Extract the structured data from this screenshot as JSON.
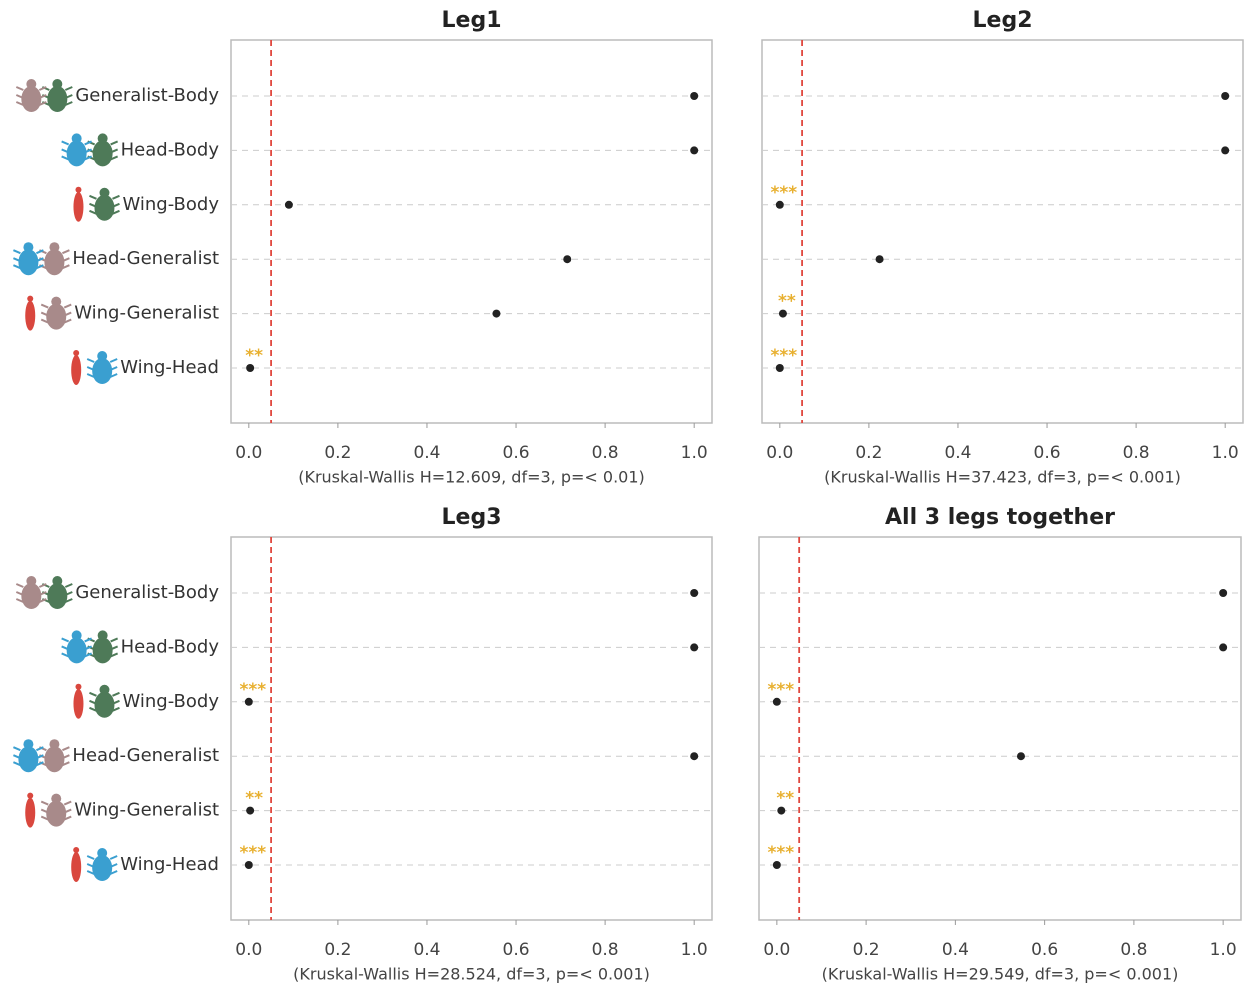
{
  "chart_data": [
    {
      "type": "dot",
      "title": "Leg1",
      "xlabel": "(Kruskal-Wallis H=12.609, df=3, p=< 0.01)",
      "categories": [
        "Generalist-Body",
        "Head-Body",
        "Wing-Body",
        "Head-Generalist",
        "Wing-Generalist",
        "Wing-Head"
      ],
      "values": [
        1.0,
        1.0,
        0.09,
        0.715,
        0.556,
        0.003
      ],
      "significance": [
        null,
        null,
        null,
        null,
        null,
        "**"
      ],
      "threshold": 0.05,
      "color": "#222222",
      "threshold_color": "#e0473e",
      "xlim": [
        -0.04,
        1.04
      ],
      "xticks": [
        {
          "value": 0,
          "label": "0.0"
        },
        0.2,
        0.4,
        0.6,
        0.8,
        {
          "value": 1,
          "label": "1.0"
        }
      ]
    },
    {
      "type": "dot",
      "title": "Leg2",
      "xlabel": "(Kruskal-Wallis H=37.423, df=3, p=< 0.001)",
      "values": [
        1.0,
        1.0,
        0.0,
        0.224,
        0.007,
        0.0
      ],
      "significance": [
        null,
        null,
        "***",
        null,
        "**",
        "***"
      ],
      "threshold": 0.05,
      "color": "#222222",
      "threshold_color": "#e0473e",
      "xlim": [
        -0.04,
        1.04
      ],
      "xticks": [
        {
          "value": 0,
          "label": "0.0"
        },
        0.2,
        0.4,
        0.6,
        0.8,
        {
          "value": 1,
          "label": "1.0"
        }
      ]
    },
    {
      "type": "dot",
      "title": "Leg3",
      "xlabel": "(Kruskal-Wallis H=28.524, df=3, p=< 0.001)",
      "categories": [
        "Generalist-Body",
        "Head-Body",
        "Wing-Body",
        "Head-Generalist",
        "Wing-Generalist",
        "Wing-Head"
      ],
      "values": [
        1.0,
        1.0,
        0.0,
        1.0,
        0.003,
        0.0
      ],
      "significance": [
        null,
        null,
        "***",
        null,
        "**",
        "***"
      ],
      "threshold": 0.05,
      "color": "#222222",
      "threshold_color": "#e0473e",
      "xlim": [
        -0.04,
        1.04
      ],
      "xticks": [
        {
          "value": 0,
          "label": "0.0"
        },
        0.2,
        0.4,
        0.6,
        0.8,
        {
          "value": 1,
          "label": "1.0"
        }
      ]
    },
    {
      "type": "dot",
      "title": "All 3 legs together",
      "xlabel": "(Kruskal-Wallis H=29.549, df=3, p=< 0.001)",
      "values": [
        1.0,
        1.0,
        0.0,
        0.547,
        0.01,
        0.0
      ],
      "significance": [
        null,
        null,
        "***",
        null,
        "**",
        "***"
      ],
      "threshold": 0.05,
      "color": "#222222",
      "threshold_color": "#e0473e",
      "xlim": [
        -0.04,
        1.04
      ],
      "xticks": [
        {
          "value": 0,
          "label": "0.0"
        },
        0.2,
        0.4,
        0.6,
        0.8,
        {
          "value": 1,
          "label": "1.0"
        }
      ]
    }
  ]
}
